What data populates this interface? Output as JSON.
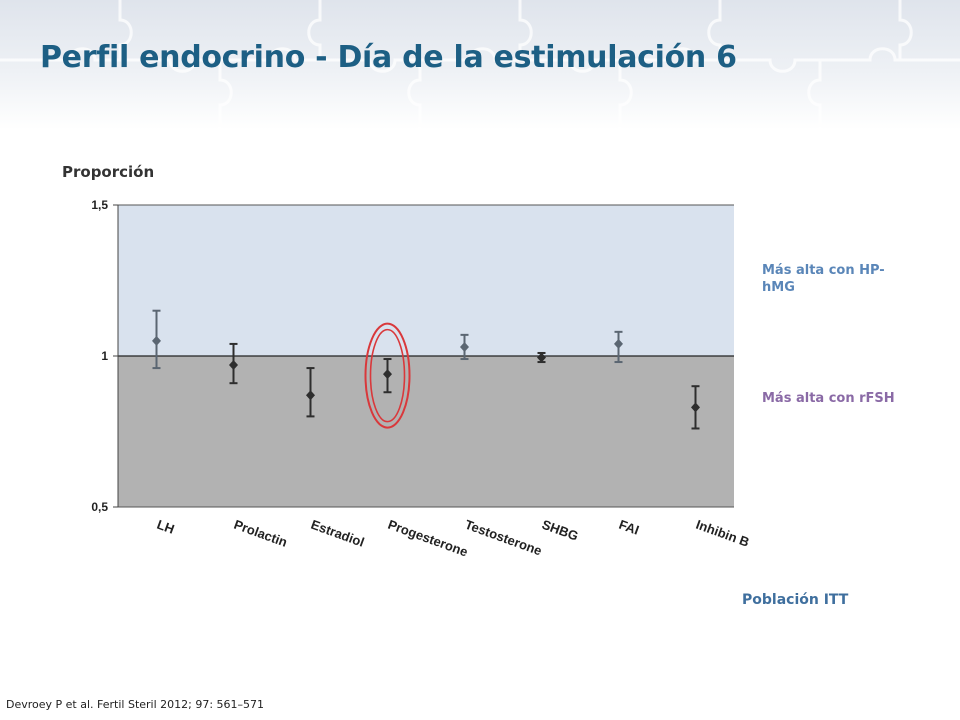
{
  "slide": {
    "title": "Perfil endocrino - Día de la estimulación 6",
    "citation": "Devroey P et al. Fertil Steril 2012; 97: 561–571",
    "population_label": "Población ITT",
    "legend": {
      "upper": "Más alta con HP-hMG",
      "lower": "Más alta con rFSH"
    }
  },
  "chart_data": {
    "type": "scatter",
    "ylabel": "Proporción",
    "ylim": [
      0.5,
      1.5
    ],
    "yticks": [
      {
        "value": 0.5,
        "label": "0,5"
      },
      {
        "value": 1.0,
        "label": "1"
      },
      {
        "value": 1.5,
        "label": "1,5"
      }
    ],
    "reference_line": 1.0,
    "categories": [
      "LH",
      "Prolactin",
      "Estradiol",
      "Progesterone",
      "Testosterone",
      "SHBG",
      "FAI",
      "Inhibin B"
    ],
    "points": [
      {
        "category": "LH",
        "value": 1.05,
        "ci_low": 0.96,
        "ci_high": 1.15
      },
      {
        "category": "Prolactin",
        "value": 0.97,
        "ci_low": 0.91,
        "ci_high": 1.04
      },
      {
        "category": "Estradiol",
        "value": 0.87,
        "ci_low": 0.8,
        "ci_high": 0.96
      },
      {
        "category": "Progesterone",
        "value": 0.94,
        "ci_low": 0.88,
        "ci_high": 0.99
      },
      {
        "category": "Testosterone",
        "value": 1.03,
        "ci_low": 0.99,
        "ci_high": 1.07
      },
      {
        "category": "SHBG",
        "value": 0.995,
        "ci_low": 0.98,
        "ci_high": 1.01
      },
      {
        "category": "FAI",
        "value": 1.04,
        "ci_low": 0.98,
        "ci_high": 1.08
      },
      {
        "category": "Inhibin B",
        "value": 0.83,
        "ci_low": 0.76,
        "ci_high": 0.9
      }
    ],
    "highlighted": "Progesterone",
    "colors": {
      "upper_region": "#d9e2ee",
      "lower_region": "#b2b2b2",
      "marker_upper": "#5b6672",
      "marker_lower": "#2e2e2e",
      "highlight_ring": "#d9383b"
    }
  }
}
